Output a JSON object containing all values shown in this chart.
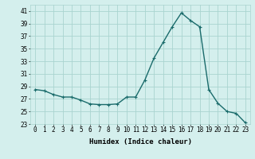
{
  "x": [
    0,
    1,
    2,
    3,
    4,
    5,
    6,
    7,
    8,
    9,
    10,
    11,
    12,
    13,
    14,
    15,
    16,
    17,
    18,
    19,
    20,
    21,
    22,
    23
  ],
  "y": [
    28.5,
    28.3,
    27.7,
    27.3,
    27.3,
    26.8,
    26.2,
    26.1,
    26.1,
    26.2,
    27.3,
    27.3,
    30.0,
    33.5,
    36.0,
    38.5,
    40.7,
    39.5,
    38.5,
    28.5,
    26.3,
    25.0,
    24.7,
    23.2
  ],
  "xlabel": "Humidex (Indice chaleur)",
  "line_color": "#1a6b6b",
  "marker": "+",
  "bg_color": "#d4efed",
  "grid_color": "#aad4d0",
  "ylim": [
    23,
    42
  ],
  "xlim": [
    -0.5,
    23.5
  ],
  "yticks": [
    23,
    25,
    27,
    29,
    31,
    33,
    35,
    37,
    39,
    41
  ],
  "xticks": [
    0,
    1,
    2,
    3,
    4,
    5,
    6,
    7,
    8,
    9,
    10,
    11,
    12,
    13,
    14,
    15,
    16,
    17,
    18,
    19,
    20,
    21,
    22,
    23
  ],
  "tick_fontsize": 5.5,
  "xlabel_fontsize": 6.5,
  "line_width": 1.0,
  "marker_size": 3.5
}
